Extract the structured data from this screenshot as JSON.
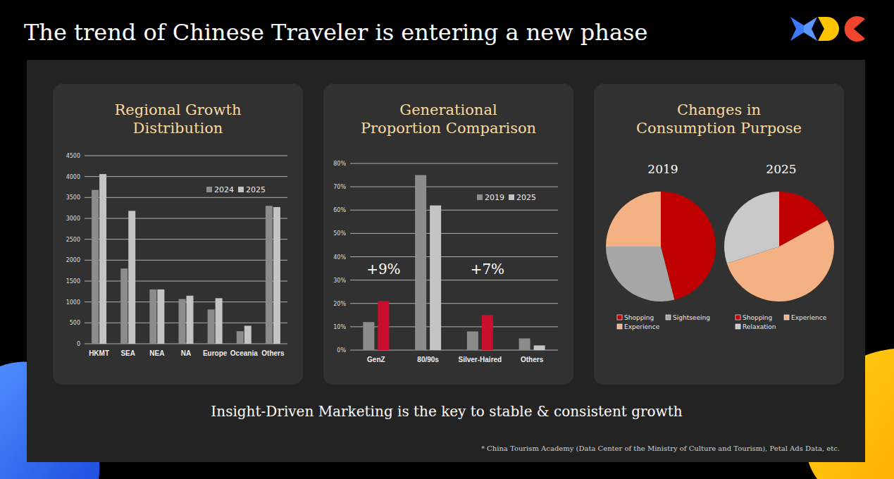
{
  "title": "The trend of Chinese Traveler is entering a new phase",
  "chart_data": [
    {
      "type": "bar",
      "title": "Regional Growth Distribution",
      "categories": [
        "HKMT",
        "SEA",
        "NEA",
        "NA",
        "Europe",
        "Oceania",
        "Others"
      ],
      "series": [
        {
          "name": "2024",
          "color": "#8c8c8c",
          "values": [
            3680,
            1800,
            1300,
            1070,
            820,
            300,
            3300
          ]
        },
        {
          "name": "2025",
          "color": "#c4c4c4",
          "values": [
            4060,
            3180,
            1300,
            1150,
            1090,
            430,
            3270
          ]
        }
      ],
      "ylim": [
        0,
        4500
      ],
      "yticks": [
        0,
        500,
        1000,
        1500,
        2000,
        2500,
        3000,
        3500,
        4000,
        4500
      ],
      "grid": true,
      "legend": "top-right"
    },
    {
      "type": "bar",
      "title": "Generational Proportion Comparison",
      "categories": [
        "GenZ",
        "80/90s",
        "Silver-Haired",
        "Others"
      ],
      "series": [
        {
          "name": "2019",
          "color": "#8c8c8c",
          "values": [
            12,
            75,
            8,
            5
          ]
        },
        {
          "name": "2025",
          "color": "#c4c4c4",
          "colors": [
            "#c8102e",
            "#c4c4c4",
            "#c8102e",
            "#c4c4c4"
          ],
          "values": [
            21,
            62,
            15,
            2
          ]
        }
      ],
      "ylim": [
        0,
        80
      ],
      "yticks": [
        {
          "value": 0,
          "label": "0%"
        },
        {
          "value": 10,
          "label": "10%"
        },
        {
          "value": 20,
          "label": "20%"
        },
        {
          "value": 30,
          "label": "30%"
        },
        {
          "value": 40,
          "label": "40%"
        },
        {
          "value": 50,
          "label": "50%"
        },
        {
          "value": 60,
          "label": "60%"
        },
        {
          "value": 70,
          "label": "70%"
        },
        {
          "value": 80,
          "label": "80%"
        }
      ],
      "grid": true,
      "legend": "top-right",
      "annotations": [
        {
          "text": "+9%",
          "category": "GenZ"
        },
        {
          "text": "+7%",
          "category": "Silver-Haired"
        }
      ]
    },
    {
      "type": "pie",
      "title": "Changes in Consumption Purpose",
      "series": [
        {
          "name": "2019",
          "categories": [
            "Shopping",
            "Sightseeing",
            "Experience"
          ],
          "values": [
            46,
            29,
            25
          ],
          "colors": [
            "#c00000",
            "#a6a6a6",
            "#f4b183"
          ]
        },
        {
          "name": "2025",
          "categories": [
            "Shopping",
            "Experience",
            "Relaxation"
          ],
          "values": [
            17,
            53,
            30
          ],
          "colors": [
            "#c00000",
            "#f4b183",
            "#c9c9c9"
          ]
        }
      ],
      "legend": "bottom"
    }
  ],
  "tagline": "Insight-Driven Marketing is the key to stable & consistent growth",
  "source": "* China Tourism Academy (Data Center of the Ministry of Culture and Tourism), Petal Ads Data, etc."
}
